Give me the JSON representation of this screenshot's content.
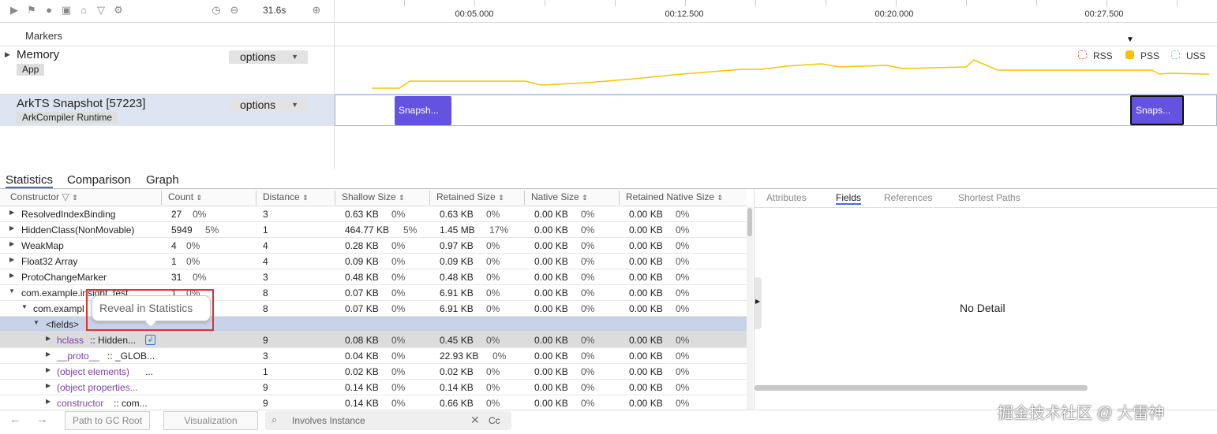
{
  "toolbar": {
    "time": "31.6s",
    "icons": [
      "play-icon",
      "flag-icon",
      "stop-icon",
      "camera-icon",
      "home-icon",
      "filter-icon",
      "gear-icon",
      "clock-icon",
      "minus-circle-icon",
      "plus-circle-icon"
    ]
  },
  "timeline": {
    "ticks": [
      "00:05.000",
      "00:12.500",
      "00:20.000",
      "00:27.500"
    ]
  },
  "tracks": {
    "markers_label": "Markers",
    "memory": {
      "title": "Memory",
      "tag": "App",
      "options": "options"
    },
    "arkts": {
      "title": "ArkTS Snapshot [57223]",
      "tag": "ArkCompiler Runtime",
      "options": "options"
    }
  },
  "legend": {
    "rss": "RSS",
    "pss": "PSS",
    "uss": "USS"
  },
  "colors": {
    "pss": "#f2c500",
    "snapshot": "#6452e0",
    "selected_row": "#c9d3e8",
    "highlighted_row": "#dcdcdc",
    "callout_border": "#e03030"
  },
  "snapshots": [
    {
      "label": "Snapsh..."
    },
    {
      "label": "Snaps..."
    }
  ],
  "bottom_tabs": {
    "statistics": "Statistics",
    "comparison": "Comparison",
    "graph": "Graph"
  },
  "columns": {
    "constructor": "Constructor",
    "count": "Count",
    "distance": "Distance",
    "shallow": "Shallow Size",
    "retained": "Retained Size",
    "native": "Native Size",
    "retained_native": "Retained Native Size"
  },
  "rows": [
    {
      "name": "ResolvedIndexBinding",
      "count": "27",
      "count_pct": "0%",
      "distance": "3",
      "shallow": "0.63 KB",
      "shallow_pct": "0%",
      "retained": "0.63 KB",
      "retained_pct": "0%",
      "native": "0.00 KB",
      "native_pct": "0%",
      "rnative": "0.00 KB",
      "rnative_pct": "0%"
    },
    {
      "name": "HiddenClass(NonMovable)",
      "count": "5949",
      "count_pct": "5%",
      "distance": "1",
      "shallow": "464.77 KB",
      "shallow_pct": "5%",
      "retained": "1.45 MB",
      "retained_pct": "17%",
      "native": "0.00 KB",
      "native_pct": "0%",
      "rnative": "0.00 KB",
      "rnative_pct": "0%"
    },
    {
      "name": "WeakMap",
      "count": "4",
      "count_pct": "0%",
      "distance": "4",
      "shallow": "0.28 KB",
      "shallow_pct": "0%",
      "retained": "0.97 KB",
      "retained_pct": "0%",
      "native": "0.00 KB",
      "native_pct": "0%",
      "rnative": "0.00 KB",
      "rnative_pct": "0%"
    },
    {
      "name": "Float32 Array",
      "count": "1",
      "count_pct": "0%",
      "distance": "4",
      "shallow": "0.09 KB",
      "shallow_pct": "0%",
      "retained": "0.09 KB",
      "retained_pct": "0%",
      "native": "0.00 KB",
      "native_pct": "0%",
      "rnative": "0.00 KB",
      "rnative_pct": "0%"
    },
    {
      "name": "ProtoChangeMarker",
      "count": "31",
      "count_pct": "0%",
      "distance": "3",
      "shallow": "0.48 KB",
      "shallow_pct": "0%",
      "retained": "0.48 KB",
      "retained_pct": "0%",
      "native": "0.00 KB",
      "native_pct": "0%",
      "rnative": "0.00 KB",
      "rnative_pct": "0%"
    },
    {
      "name": "com.example.insight_test",
      "count": "1",
      "count_pct": "0%",
      "distance": "8",
      "shallow": "0.07 KB",
      "shallow_pct": "0%",
      "retained": "6.91 KB",
      "retained_pct": "0%",
      "native": "0.00 KB",
      "native_pct": "0%",
      "rnative": "0.00 KB",
      "rnative_pct": "0%"
    },
    {
      "name": "com.exampl",
      "count": "",
      "count_pct": "",
      "distance": "8",
      "shallow": "0.07 KB",
      "shallow_pct": "0%",
      "retained": "6.91 KB",
      "retained_pct": "0%",
      "native": "0.00 KB",
      "native_pct": "0%",
      "rnative": "0.00 KB",
      "rnative_pct": "0%"
    },
    {
      "name": "<fields>",
      "count": "",
      "count_pct": "",
      "distance": "",
      "shallow": "",
      "shallow_pct": "",
      "retained": "",
      "retained_pct": "",
      "native": "",
      "native_pct": "",
      "rnative": "",
      "rnative_pct": ""
    },
    {
      "name_a": "hclass",
      "name_b": ":: Hidden...",
      "count": "",
      "count_pct": "",
      "distance": "9",
      "shallow": "0.08 KB",
      "shallow_pct": "0%",
      "retained": "0.45 KB",
      "retained_pct": "0%",
      "native": "0.00 KB",
      "native_pct": "0%",
      "rnative": "0.00 KB",
      "rnative_pct": "0%"
    },
    {
      "name_a": "__proto__",
      "name_b": ":: _GLOB...",
      "count": "",
      "count_pct": "",
      "distance": "3",
      "shallow": "0.04 KB",
      "shallow_pct": "0%",
      "retained": "22.93 KB",
      "retained_pct": "0%",
      "native": "0.00 KB",
      "native_pct": "0%",
      "rnative": "0.00 KB",
      "rnative_pct": "0%"
    },
    {
      "name_a": "(object elements)",
      "name_b": "...",
      "count": "",
      "count_pct": "",
      "distance": "1",
      "shallow": "0.02 KB",
      "shallow_pct": "0%",
      "retained": "0.02 KB",
      "retained_pct": "0%",
      "native": "0.00 KB",
      "native_pct": "0%",
      "rnative": "0.00 KB",
      "rnative_pct": "0%"
    },
    {
      "name_a": "(object properties...",
      "name_b": "",
      "count": "",
      "count_pct": "",
      "distance": "9",
      "shallow": "0.14 KB",
      "shallow_pct": "0%",
      "retained": "0.14 KB",
      "retained_pct": "0%",
      "native": "0.00 KB",
      "native_pct": "0%",
      "rnative": "0.00 KB",
      "rnative_pct": "0%"
    },
    {
      "name_a": "constructor",
      "name_b": ":: com...",
      "count": "",
      "count_pct": "",
      "distance": "9",
      "shallow": "0.14 KB",
      "shallow_pct": "0%",
      "retained": "0.66 KB",
      "retained_pct": "0%",
      "native": "0.00 KB",
      "native_pct": "0%",
      "rnative": "0.00 KB",
      "rnative_pct": "0%"
    }
  ],
  "tooltip": "Reveal in Statistics",
  "detail": {
    "tabs": {
      "attributes": "Attributes",
      "fields": "Fields",
      "references": "References",
      "shortest": "Shortest Paths"
    },
    "empty": "No Detail"
  },
  "footer": {
    "path_btn": "Path to GC Root",
    "viz_btn": "Visualization",
    "search_placeholder": "Involves Instance",
    "case_label": "Cc"
  },
  "watermark": "掘金技术社区 @ 大雷神"
}
